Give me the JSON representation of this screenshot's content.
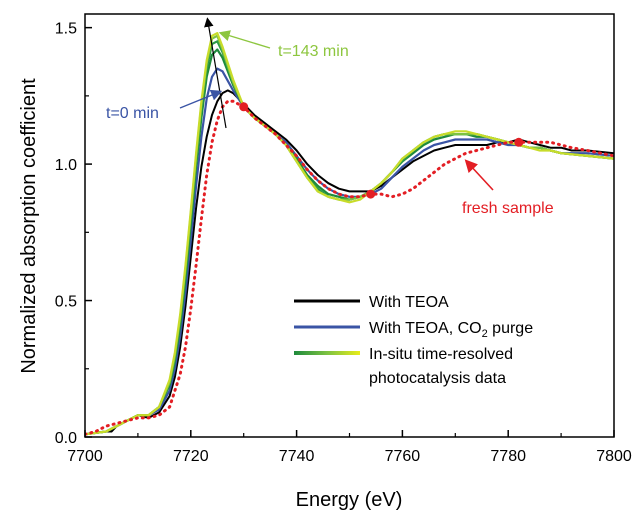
{
  "chart_data": {
    "type": "line",
    "title": "",
    "xlabel": "Energy (eV)",
    "ylabel": "Normalized absorption coefficient",
    "xlim": [
      7700,
      7800
    ],
    "ylim": [
      0.0,
      1.55
    ],
    "x_ticks": [
      7700,
      7720,
      7740,
      7760,
      7780,
      7800
    ],
    "y_ticks": [
      0.0,
      0.5,
      1.0,
      1.5
    ],
    "x_tick_labels": [
      "7700",
      "7720",
      "7740",
      "7760",
      "7780",
      "7800"
    ],
    "y_tick_labels": [
      "0.0",
      "0.5",
      "1.0",
      "1.5"
    ],
    "grid": false,
    "legend_position": "bottom-right",
    "legend": [
      {
        "label": "With TEOA",
        "color": "#000000"
      },
      {
        "label": "With TEOA, CO",
        "sub": "2",
        "label_suffix": " purge",
        "color": "#3a54a5"
      },
      {
        "label": "In-situ time-resolved",
        "label_line2": "photocatalysis data",
        "gradient": [
          "#1e8a3c",
          "#7cc242",
          "#e8ec1a"
        ]
      }
    ],
    "annotations": [
      {
        "text": "t=143 min",
        "color": "#8dc63f",
        "x": 7736,
        "y": 1.42
      },
      {
        "text": "t=0 min",
        "color": "#3a54a5",
        "x": 7706,
        "y": 1.18
      },
      {
        "text": "fresh sample",
        "color": "#e31e24",
        "x": 7765,
        "y": 0.83
      }
    ],
    "series": [
      {
        "name": "With TEOA",
        "color": "#000000",
        "style": "solid",
        "x": [
          7700,
          7702,
          7704,
          7705,
          7706,
          7708,
          7710,
          7712,
          7714,
          7716,
          7717,
          7718,
          7719,
          7720,
          7721,
          7722,
          7723,
          7724,
          7725,
          7726,
          7727,
          7728,
          7730,
          7732,
          7734,
          7736,
          7738,
          7740,
          7742,
          7744,
          7746,
          7748,
          7750,
          7752,
          7754,
          7756,
          7758,
          7760,
          7762,
          7764,
          7766,
          7768,
          7770,
          7772,
          7774,
          7776,
          7778,
          7780,
          7782,
          7784,
          7786,
          7788,
          7790,
          7792,
          7795,
          7800
        ],
        "y": [
          0.01,
          0.015,
          0.02,
          0.02,
          0.04,
          0.06,
          0.08,
          0.07,
          0.09,
          0.15,
          0.22,
          0.33,
          0.48,
          0.66,
          0.84,
          0.99,
          1.1,
          1.18,
          1.23,
          1.26,
          1.27,
          1.26,
          1.22,
          1.18,
          1.15,
          1.12,
          1.09,
          1.05,
          1.0,
          0.96,
          0.93,
          0.91,
          0.9,
          0.9,
          0.9,
          0.92,
          0.95,
          0.98,
          1.01,
          1.03,
          1.05,
          1.06,
          1.07,
          1.07,
          1.07,
          1.07,
          1.08,
          1.08,
          1.09,
          1.08,
          1.07,
          1.06,
          1.06,
          1.05,
          1.05,
          1.04
        ]
      },
      {
        "name": "With TEOA, CO2 purge",
        "color": "#3a54a5",
        "style": "solid",
        "x": [
          7700,
          7704,
          7706,
          7708,
          7710,
          7712,
          7714,
          7716,
          7717,
          7718,
          7719,
          7720,
          7721,
          7722,
          7723,
          7724,
          7725,
          7726,
          7728,
          7730,
          7732,
          7734,
          7736,
          7738,
          7740,
          7742,
          7744,
          7746,
          7748,
          7750,
          7752,
          7754,
          7756,
          7758,
          7760,
          7762,
          7764,
          7766,
          7768,
          7770,
          7772,
          7774,
          7776,
          7778,
          7780,
          7782,
          7784,
          7786,
          7788,
          7790,
          7795,
          7800
        ],
        "y": [
          0.01,
          0.02,
          0.04,
          0.06,
          0.08,
          0.08,
          0.1,
          0.17,
          0.25,
          0.37,
          0.53,
          0.72,
          0.92,
          1.1,
          1.24,
          1.32,
          1.35,
          1.34,
          1.27,
          1.21,
          1.17,
          1.14,
          1.11,
          1.08,
          1.03,
          0.98,
          0.94,
          0.91,
          0.89,
          0.88,
          0.88,
          0.89,
          0.91,
          0.95,
          0.99,
          1.02,
          1.05,
          1.07,
          1.08,
          1.09,
          1.09,
          1.09,
          1.09,
          1.08,
          1.07,
          1.07,
          1.06,
          1.06,
          1.05,
          1.04,
          1.04,
          1.03
        ]
      },
      {
        "name": "In-situ time-resolved photocatalysis data (t=0 min)",
        "color": "#1e8a3c",
        "style": "solid",
        "x": [
          7700,
          7704,
          7706,
          7708,
          7710,
          7712,
          7714,
          7716,
          7717,
          7718,
          7719,
          7720,
          7721,
          7722,
          7723,
          7724,
          7725,
          7726,
          7728,
          7730,
          7732,
          7734,
          7736,
          7738,
          7740,
          7742,
          7744,
          7746,
          7748,
          7750,
          7752,
          7754,
          7756,
          7758,
          7760,
          7762,
          7764,
          7766,
          7768,
          7770,
          7772,
          7774,
          7776,
          7778,
          7780,
          7782,
          7784,
          7786,
          7788,
          7790,
          7795,
          7800
        ],
        "y": [
          0.01,
          0.02,
          0.04,
          0.06,
          0.08,
          0.08,
          0.11,
          0.19,
          0.28,
          0.41,
          0.58,
          0.78,
          0.99,
          1.17,
          1.32,
          1.4,
          1.42,
          1.39,
          1.29,
          1.21,
          1.17,
          1.14,
          1.11,
          1.07,
          1.02,
          0.96,
          0.92,
          0.89,
          0.88,
          0.87,
          0.88,
          0.9,
          0.93,
          0.97,
          1.01,
          1.04,
          1.07,
          1.09,
          1.1,
          1.11,
          1.11,
          1.1,
          1.1,
          1.09,
          1.08,
          1.07,
          1.06,
          1.06,
          1.05,
          1.04,
          1.03,
          1.02
        ]
      },
      {
        "name": "In-situ time-resolved photocatalysis data",
        "color": "#2d9a46",
        "style": "solid",
        "x": [
          7700,
          7704,
          7706,
          7708,
          7710,
          7712,
          7714,
          7716,
          7717,
          7718,
          7719,
          7720,
          7721,
          7722,
          7723,
          7724,
          7725,
          7726,
          7728,
          7730,
          7732,
          7734,
          7736,
          7738,
          7740,
          7742,
          7744,
          7746,
          7748,
          7750,
          7752,
          7754,
          7756,
          7758,
          7760,
          7762,
          7764,
          7766,
          7768,
          7770,
          7772,
          7774,
          7776,
          7778,
          7780,
          7782,
          7784,
          7786,
          7788,
          7790,
          7795,
          7800
        ],
        "y": [
          0.01,
          0.02,
          0.04,
          0.06,
          0.08,
          0.08,
          0.11,
          0.2,
          0.29,
          0.43,
          0.6,
          0.8,
          1.01,
          1.2,
          1.35,
          1.44,
          1.45,
          1.41,
          1.3,
          1.21,
          1.17,
          1.14,
          1.11,
          1.07,
          1.01,
          0.95,
          0.91,
          0.88,
          0.87,
          0.87,
          0.88,
          0.9,
          0.93,
          0.97,
          1.01,
          1.05,
          1.08,
          1.1,
          1.11,
          1.11,
          1.11,
          1.11,
          1.1,
          1.09,
          1.08,
          1.07,
          1.06,
          1.06,
          1.05,
          1.04,
          1.03,
          1.02
        ]
      },
      {
        "name": "In-situ time-resolved photocatalysis data",
        "color": "#7cc242",
        "style": "solid",
        "x": [
          7700,
          7704,
          7706,
          7708,
          7710,
          7712,
          7714,
          7716,
          7717,
          7718,
          7719,
          7720,
          7721,
          7722,
          7723,
          7724,
          7725,
          7726,
          7728,
          7730,
          7732,
          7734,
          7736,
          7738,
          7740,
          7742,
          7744,
          7746,
          7748,
          7750,
          7752,
          7754,
          7756,
          7758,
          7760,
          7762,
          7764,
          7766,
          7768,
          7770,
          7772,
          7774,
          7776,
          7778,
          7780,
          7782,
          7784,
          7786,
          7788,
          7790,
          7795,
          7800
        ],
        "y": [
          0.01,
          0.02,
          0.04,
          0.06,
          0.08,
          0.08,
          0.11,
          0.2,
          0.3,
          0.44,
          0.62,
          0.82,
          1.03,
          1.22,
          1.37,
          1.46,
          1.47,
          1.42,
          1.3,
          1.21,
          1.17,
          1.14,
          1.11,
          1.07,
          1.01,
          0.95,
          0.9,
          0.88,
          0.87,
          0.87,
          0.88,
          0.9,
          0.93,
          0.97,
          1.02,
          1.05,
          1.08,
          1.1,
          1.11,
          1.11,
          1.11,
          1.11,
          1.1,
          1.09,
          1.08,
          1.07,
          1.06,
          1.06,
          1.05,
          1.04,
          1.03,
          1.02
        ]
      },
      {
        "name": "In-situ time-resolved photocatalysis data (t=143 min)",
        "color": "#c8dc2a",
        "style": "solid",
        "x": [
          7700,
          7704,
          7706,
          7708,
          7710,
          7712,
          7714,
          7716,
          7717,
          7718,
          7719,
          7720,
          7721,
          7722,
          7723,
          7724,
          7725,
          7726,
          7728,
          7730,
          7732,
          7734,
          7736,
          7738,
          7740,
          7742,
          7744,
          7746,
          7748,
          7750,
          7752,
          7754,
          7756,
          7758,
          7760,
          7762,
          7764,
          7766,
          7768,
          7770,
          7772,
          7774,
          7776,
          7778,
          7780,
          7782,
          7784,
          7786,
          7788,
          7790,
          7795,
          7800
        ],
        "y": [
          0.01,
          0.02,
          0.04,
          0.06,
          0.08,
          0.08,
          0.11,
          0.21,
          0.31,
          0.45,
          0.63,
          0.83,
          1.04,
          1.23,
          1.38,
          1.47,
          1.48,
          1.43,
          1.31,
          1.21,
          1.17,
          1.14,
          1.11,
          1.07,
          1.01,
          0.95,
          0.9,
          0.88,
          0.87,
          0.86,
          0.87,
          0.9,
          0.93,
          0.97,
          1.02,
          1.05,
          1.08,
          1.1,
          1.11,
          1.12,
          1.12,
          1.11,
          1.1,
          1.09,
          1.08,
          1.07,
          1.06,
          1.05,
          1.05,
          1.04,
          1.03,
          1.02
        ]
      },
      {
        "name": "fresh sample",
        "color": "#e31e24",
        "style": "dotted",
        "x": [
          7700,
          7702,
          7704,
          7706,
          7708,
          7710,
          7712,
          7714,
          7716,
          7718,
          7719,
          7720,
          7721,
          7722,
          7723,
          7724,
          7725,
          7726,
          7727,
          7728,
          7730,
          7732,
          7734,
          7736,
          7738,
          7740,
          7742,
          7744,
          7746,
          7748,
          7750,
          7752,
          7754,
          7756,
          7758,
          7760,
          7762,
          7764,
          7766,
          7768,
          7770,
          7772,
          7774,
          7776,
          7778,
          7780,
          7782,
          7784,
          7786,
          7788,
          7790,
          7792,
          7795,
          7800
        ],
        "y": [
          0.01,
          0.02,
          0.04,
          0.05,
          0.06,
          0.07,
          0.07,
          0.08,
          0.11,
          0.23,
          0.33,
          0.47,
          0.63,
          0.8,
          0.96,
          1.08,
          1.16,
          1.21,
          1.23,
          1.23,
          1.21,
          1.17,
          1.14,
          1.11,
          1.07,
          1.03,
          0.98,
          0.94,
          0.91,
          0.89,
          0.88,
          0.88,
          0.89,
          0.89,
          0.88,
          0.89,
          0.91,
          0.94,
          0.97,
          1.0,
          1.02,
          1.04,
          1.05,
          1.06,
          1.07,
          1.08,
          1.08,
          1.08,
          1.08,
          1.08,
          1.07,
          1.06,
          1.05,
          1.03
        ]
      }
    ],
    "markers": [
      {
        "x": 7730,
        "y": 1.21,
        "color": "#e31e24"
      },
      {
        "x": 7754,
        "y": 0.89,
        "color": "#e31e24"
      },
      {
        "x": 7782,
        "y": 1.08,
        "color": "#e31e24"
      }
    ]
  }
}
